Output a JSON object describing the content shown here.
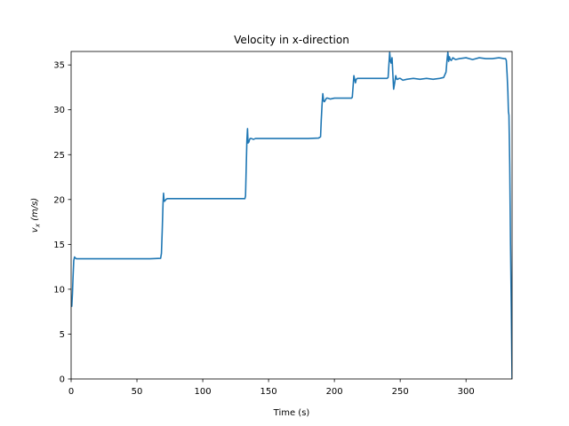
{
  "chart_data": {
    "type": "line",
    "title": "Velocity in x-direction",
    "xlabel": "Time (s)",
    "ylabel_main": "v",
    "ylabel_sub": "x",
    "ylabel_units": " (m/s)",
    "xlim": [
      0,
      335
    ],
    "ylim": [
      0,
      36.5
    ],
    "xticks": [
      0,
      50,
      100,
      150,
      200,
      250,
      300
    ],
    "yticks": [
      0,
      5,
      10,
      15,
      20,
      25,
      30,
      35
    ],
    "grid": false,
    "series": [
      {
        "color": "#1f77b4",
        "x": [
          0,
          0.5,
          1.0,
          1.5,
          2.0,
          2.6,
          3.0,
          4.0,
          6.0,
          10,
          20,
          40,
          60,
          68.0,
          68.6,
          69.2,
          69.8,
          70.2,
          70.6,
          71.0,
          72.0,
          73.0,
          75,
          80,
          90,
          100,
          110,
          120,
          125,
          132.0,
          132.5,
          133.0,
          133.5,
          134.0,
          134.4,
          135.0,
          135.6,
          136.0,
          137.0,
          138.5,
          140,
          145,
          150,
          160,
          170,
          180,
          188,
          189.5,
          190.0,
          190.6,
          191.2,
          191.8,
          192.4,
          193.2,
          194.0,
          195.0,
          197,
          200,
          205,
          210,
          213.0,
          213.6,
          214.2,
          214.8,
          215.4,
          216.0,
          216.6,
          217.4,
          218.2,
          220,
          225,
          230,
          235,
          240,
          240.8,
          241.4,
          242.0,
          242.6,
          243.2,
          243.8,
          244.4,
          245.0,
          245.8,
          246.6,
          247.4,
          248.2,
          249.0,
          250,
          252,
          255,
          260,
          265,
          270,
          275,
          280,
          283,
          284.8,
          285.6,
          286.2,
          286.8,
          287.4,
          288.0,
          288.8,
          290,
          292,
          295,
          300,
          305,
          310,
          315,
          320,
          325,
          329,
          330.0,
          330.6,
          331.2,
          331.8,
          332.2,
          332.6,
          333.2,
          333.8,
          334.4,
          334.8,
          335.0
        ],
        "y": [
          8.3,
          8.1,
          9.5,
          11.5,
          13.2,
          13.6,
          13.5,
          13.4,
          13.4,
          13.4,
          13.4,
          13.4,
          13.4,
          13.45,
          14.0,
          16.5,
          19.5,
          20.7,
          19.9,
          19.8,
          20.0,
          20.1,
          20.1,
          20.1,
          20.1,
          20.1,
          20.1,
          20.1,
          20.1,
          20.1,
          20.4,
          23.5,
          26.5,
          27.9,
          26.3,
          26.4,
          26.7,
          26.8,
          26.8,
          26.7,
          26.8,
          26.8,
          26.8,
          26.8,
          26.8,
          26.8,
          26.85,
          27.0,
          28.8,
          30.5,
          31.8,
          31.0,
          30.9,
          31.1,
          31.3,
          31.3,
          31.2,
          31.3,
          31.3,
          31.3,
          31.3,
          31.4,
          32.6,
          33.8,
          33.4,
          33.0,
          33.4,
          33.5,
          33.5,
          33.5,
          33.5,
          33.5,
          33.5,
          33.5,
          33.6,
          35.0,
          36.4,
          35.4,
          35.2,
          35.8,
          34.0,
          32.3,
          33.0,
          33.8,
          33.4,
          33.4,
          33.5,
          33.5,
          33.3,
          33.4,
          33.5,
          33.4,
          33.5,
          33.4,
          33.5,
          33.6,
          34.2,
          35.6,
          36.4,
          35.4,
          35.9,
          35.6,
          35.5,
          35.8,
          35.6,
          35.7,
          35.8,
          35.6,
          35.8,
          35.7,
          35.7,
          35.8,
          35.7,
          35.7,
          35.5,
          34.0,
          32.0,
          29.8,
          29.4,
          24.0,
          15.0,
          8.0,
          2.5,
          0.0
        ]
      }
    ]
  }
}
